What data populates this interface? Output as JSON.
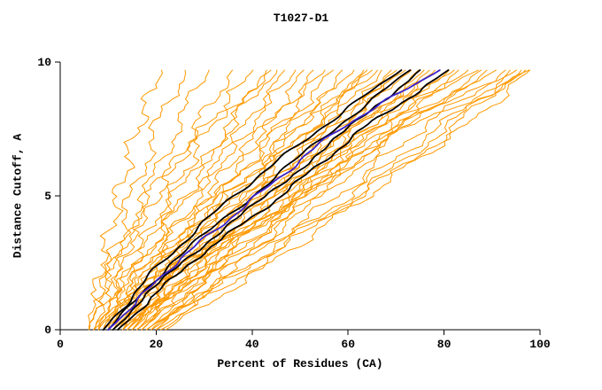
{
  "chart_data": {
    "type": "line",
    "title": "T1027-D1",
    "xlabel": "Percent of Residues (CA)",
    "ylabel": "Distance Cutoff, A",
    "xlim": [
      0,
      100
    ],
    "ylim": [
      0,
      10
    ],
    "xticks": [
      0,
      20,
      40,
      60,
      80,
      100
    ],
    "yticks": [
      0,
      5,
      10
    ],
    "grid": false,
    "legend": "none",
    "y_control": [
      0,
      2.5,
      5,
      7.5,
      9.7
    ],
    "series_groups": [
      {
        "name": "model-curves",
        "color": "#ff9900",
        "stroke_width": 1,
        "curves": [
          [
            6,
            9,
            12,
            16,
            21
          ],
          [
            7,
            11,
            15,
            20,
            26
          ],
          [
            8,
            13,
            18,
            24,
            31
          ],
          [
            6,
            12,
            20,
            28,
            36
          ],
          [
            9,
            15,
            23,
            31,
            40
          ],
          [
            10,
            17,
            26,
            35,
            43
          ],
          [
            7,
            14,
            24,
            35,
            45
          ],
          [
            11,
            19,
            29,
            38,
            47
          ],
          [
            8,
            16,
            27,
            39,
            49
          ],
          [
            12,
            21,
            32,
            42,
            51
          ],
          [
            9,
            18,
            30,
            43,
            53
          ],
          [
            13,
            23,
            34,
            45,
            55
          ],
          [
            10,
            20,
            33,
            46,
            57
          ],
          [
            14,
            25,
            37,
            48,
            59
          ],
          [
            11,
            22,
            35,
            49,
            61
          ],
          [
            15,
            27,
            40,
            52,
            63
          ],
          [
            12,
            24,
            38,
            52,
            65
          ],
          [
            16,
            29,
            43,
            55,
            67
          ],
          [
            13,
            26,
            41,
            56,
            69
          ],
          [
            17,
            31,
            46,
            58,
            71
          ],
          [
            14,
            28,
            44,
            59,
            73
          ],
          [
            18,
            33,
            48,
            61,
            75
          ],
          [
            15,
            30,
            46,
            62,
            77
          ],
          [
            19,
            35,
            51,
            64,
            79
          ],
          [
            16,
            32,
            49,
            65,
            81
          ],
          [
            20,
            37,
            53,
            68,
            83
          ],
          [
            17,
            34,
            51,
            68,
            85
          ],
          [
            13,
            24,
            40,
            60,
            87
          ],
          [
            18,
            36,
            55,
            71,
            89
          ],
          [
            14,
            26,
            45,
            66,
            91
          ],
          [
            19,
            38,
            58,
            75,
            93
          ],
          [
            15,
            28,
            48,
            70,
            95
          ],
          [
            20,
            40,
            60,
            78,
            97
          ],
          [
            16,
            30,
            50,
            72,
            98
          ],
          [
            8,
            20,
            36,
            52,
            66
          ],
          [
            10,
            24,
            42,
            58,
            72
          ],
          [
            12,
            28,
            47,
            63,
            78
          ],
          [
            9,
            22,
            39,
            56,
            70
          ],
          [
            11,
            26,
            44,
            61,
            76
          ],
          [
            13,
            30,
            50,
            66,
            82
          ],
          [
            7,
            18,
            34,
            50,
            64
          ],
          [
            17,
            33,
            52,
            70,
            88
          ],
          [
            21,
            42,
            62,
            80,
            96
          ],
          [
            6,
            10,
            18,
            30,
            44
          ],
          [
            22,
            44,
            64,
            82,
            94
          ],
          [
            18,
            40,
            62,
            84,
            98
          ]
        ]
      },
      {
        "name": "highlight-black-curves",
        "color": "#000000",
        "stroke_width": 1.8,
        "curves": [
          [
            9,
            21,
            36,
            54,
            71
          ],
          [
            10,
            23,
            40,
            57,
            73
          ],
          [
            11,
            25,
            43,
            60,
            75
          ],
          [
            12,
            27,
            46,
            63,
            81
          ]
        ]
      },
      {
        "name": "highlight-blue-curve",
        "color": "#3a22cc",
        "stroke_width": 1.8,
        "curves": [
          [
            10,
            24,
            41,
            58,
            79
          ]
        ]
      }
    ]
  }
}
